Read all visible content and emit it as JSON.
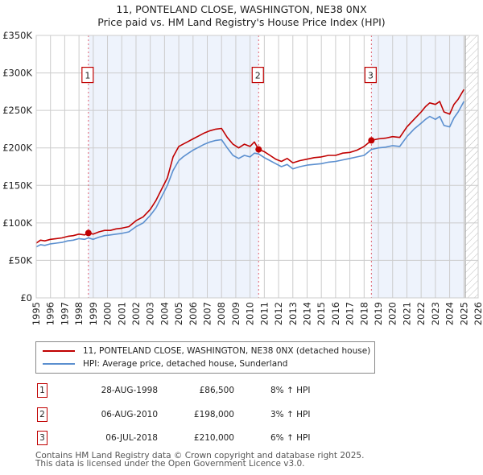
{
  "title_line1": "11, PONTELAND CLOSE, WASHINGTON, NE38 0NX",
  "title_line2": "Price paid vs. HM Land Registry's House Price Index (HPI)",
  "colors": {
    "property_line": "#c00000",
    "hpi_line": "#5b8fcf",
    "shade": "#eef3fc",
    "grid": "#cccccc",
    "marker_box": "#c00000",
    "vline": "#e06070"
  },
  "legend": {
    "property_label": "11, PONTELAND CLOSE, WASHINGTON, NE38 0NX (detached house)",
    "hpi_label": "HPI: Average price, detached house, Sunderland"
  },
  "transactions": [
    {
      "num": "1",
      "date": "28-AUG-1998",
      "price": "£86,500",
      "hpi": "8% ↑ HPI"
    },
    {
      "num": "2",
      "date": "06-AUG-2010",
      "price": "£198,000",
      "hpi": "3% ↑ HPI"
    },
    {
      "num": "3",
      "date": "06-JUL-2018",
      "price": "£210,000",
      "hpi": "6% ↑ HPI"
    }
  ],
  "footer": {
    "line1": "Contains HM Land Registry data © Crown copyright and database right 2025.",
    "line2": "This data is licensed under the Open Government Licence v3.0."
  },
  "chart_data": {
    "type": "line",
    "title": "11, PONTELAND CLOSE, WASHINGTON, NE38 0NX — Price paid vs. HM Land Registry's House Price Index (HPI)",
    "xlabel": "",
    "ylabel": "",
    "xlim": [
      1995,
      2026
    ],
    "ylim": [
      0,
      350000
    ],
    "grid": true,
    "legend_position": "below",
    "x_ticks": [
      "1995",
      "1996",
      "1997",
      "1998",
      "1999",
      "2000",
      "2001",
      "2002",
      "2003",
      "2004",
      "2005",
      "2006",
      "2007",
      "2008",
      "2009",
      "2010",
      "2011",
      "2012",
      "2013",
      "2014",
      "2015",
      "2016",
      "2017",
      "2018",
      "2019",
      "2020",
      "2021",
      "2022",
      "2023",
      "2024",
      "2025",
      "2026"
    ],
    "y_ticks": [
      {
        "value": 0,
        "label": "£0"
      },
      {
        "value": 50000,
        "label": "£50K"
      },
      {
        "value": 100000,
        "label": "£100K"
      },
      {
        "value": 150000,
        "label": "£150K"
      },
      {
        "value": 200000,
        "label": "£200K"
      },
      {
        "value": 250000,
        "label": "£250K"
      },
      {
        "value": 300000,
        "label": "£300K"
      },
      {
        "value": 350000,
        "label": "£350K"
      }
    ],
    "shaded_ranges": [
      [
        1998.66,
        2010.6
      ],
      [
        2018.51,
        2025.0
      ]
    ],
    "future_hatch_from": 2025.1,
    "sales": [
      {
        "label": "1",
        "x": 1998.66,
        "y": 86500
      },
      {
        "label": "2",
        "x": 2010.6,
        "y": 198000
      },
      {
        "label": "3",
        "x": 2018.51,
        "y": 210000
      }
    ],
    "series": [
      {
        "name": "11, PONTELAND CLOSE, WASHINGTON, NE38 0NX (detached house)",
        "x": [
          1995.0,
          1995.3,
          1995.6,
          1996.0,
          1996.4,
          1996.8,
          1997.2,
          1997.6,
          1998.0,
          1998.4,
          1998.66,
          1999.0,
          1999.4,
          1999.8,
          2000.2,
          2000.6,
          2001.0,
          2001.5,
          2002.0,
          2002.5,
          2003.0,
          2003.4,
          2003.8,
          2004.2,
          2004.6,
          2005.0,
          2005.3,
          2005.6,
          2006.0,
          2006.4,
          2006.8,
          2007.2,
          2007.6,
          2008.0,
          2008.4,
          2008.8,
          2009.2,
          2009.6,
          2010.0,
          2010.3,
          2010.6,
          2011.0,
          2011.4,
          2011.8,
          2012.2,
          2012.6,
          2013.0,
          2013.5,
          2014.0,
          2014.5,
          2015.0,
          2015.5,
          2016.0,
          2016.5,
          2017.0,
          2017.5,
          2018.0,
          2018.51,
          2019.0,
          2019.5,
          2020.0,
          2020.5,
          2021.0,
          2021.5,
          2022.0,
          2022.3,
          2022.6,
          2023.0,
          2023.3,
          2023.6,
          2024.0,
          2024.3,
          2024.6,
          2025.0
        ],
        "y": [
          73000,
          77000,
          76000,
          78000,
          79000,
          80000,
          82000,
          83000,
          85000,
          84000,
          86500,
          85000,
          88000,
          90000,
          90000,
          92000,
          93000,
          95000,
          103000,
          108000,
          118000,
          130000,
          145000,
          160000,
          188000,
          202000,
          205000,
          208000,
          212000,
          216000,
          220000,
          223000,
          225000,
          226000,
          214000,
          205000,
          200000,
          205000,
          202000,
          208000,
          198000,
          195000,
          190000,
          185000,
          182000,
          186000,
          180000,
          183000,
          185000,
          187000,
          188000,
          190000,
          190000,
          193000,
          194000,
          197000,
          202000,
          210000,
          212000,
          213000,
          215000,
          214000,
          228000,
          238000,
          248000,
          255000,
          260000,
          258000,
          262000,
          248000,
          245000,
          258000,
          265000,
          278000
        ]
      },
      {
        "name": "HPI: Average price, detached house, Sunderland",
        "x": [
          1995.0,
          1995.3,
          1995.6,
          1996.0,
          1996.4,
          1996.8,
          1997.2,
          1997.6,
          1998.0,
          1998.4,
          1998.66,
          1999.0,
          1999.4,
          1999.8,
          2000.2,
          2000.6,
          2001.0,
          2001.5,
          2002.0,
          2002.5,
          2003.0,
          2003.4,
          2003.8,
          2004.2,
          2004.6,
          2005.0,
          2005.3,
          2005.6,
          2006.0,
          2006.4,
          2006.8,
          2007.2,
          2007.6,
          2008.0,
          2008.4,
          2008.8,
          2009.2,
          2009.6,
          2010.0,
          2010.3,
          2010.6,
          2011.0,
          2011.4,
          2011.8,
          2012.2,
          2012.6,
          2013.0,
          2013.5,
          2014.0,
          2014.5,
          2015.0,
          2015.5,
          2016.0,
          2016.5,
          2017.0,
          2017.5,
          2018.0,
          2018.51,
          2019.0,
          2019.5,
          2020.0,
          2020.5,
          2021.0,
          2021.5,
          2022.0,
          2022.3,
          2022.6,
          2023.0,
          2023.3,
          2023.6,
          2024.0,
          2024.3,
          2024.6,
          2025.0
        ],
        "y": [
          68000,
          71000,
          70000,
          72000,
          73000,
          74000,
          76000,
          77000,
          79000,
          78000,
          80000,
          78000,
          81000,
          83000,
          84000,
          85000,
          86000,
          88000,
          95000,
          100000,
          110000,
          120000,
          135000,
          150000,
          170000,
          183000,
          188000,
          192000,
          197000,
          201000,
          205000,
          208000,
          210000,
          211000,
          200000,
          190000,
          186000,
          190000,
          188000,
          193000,
          192000,
          187000,
          183000,
          179000,
          175000,
          178000,
          172000,
          175000,
          177000,
          178000,
          179000,
          181000,
          182000,
          184000,
          186000,
          188000,
          190000,
          198000,
          200000,
          201000,
          203000,
          202000,
          215000,
          225000,
          233000,
          238000,
          242000,
          238000,
          242000,
          230000,
          228000,
          240000,
          248000,
          262000
        ]
      }
    ]
  }
}
